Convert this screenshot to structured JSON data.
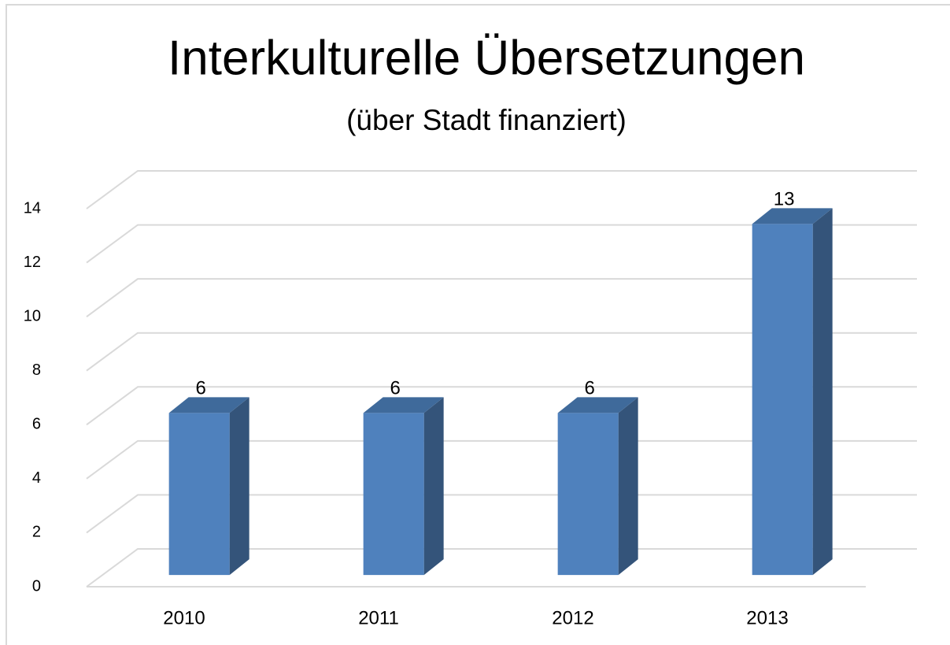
{
  "chart_data": {
    "type": "bar",
    "title": "Interkulturelle Übersetzungen",
    "subtitle": "(über Stadt finanziert)",
    "categories": [
      "2010",
      "2011",
      "2012",
      "2013"
    ],
    "values": [
      6,
      6,
      6,
      13
    ],
    "color": "#4f81bd",
    "ylim": [
      0,
      14
    ],
    "yticks": [
      0,
      2,
      4,
      6,
      8,
      10,
      12,
      14
    ],
    "grid": true
  }
}
